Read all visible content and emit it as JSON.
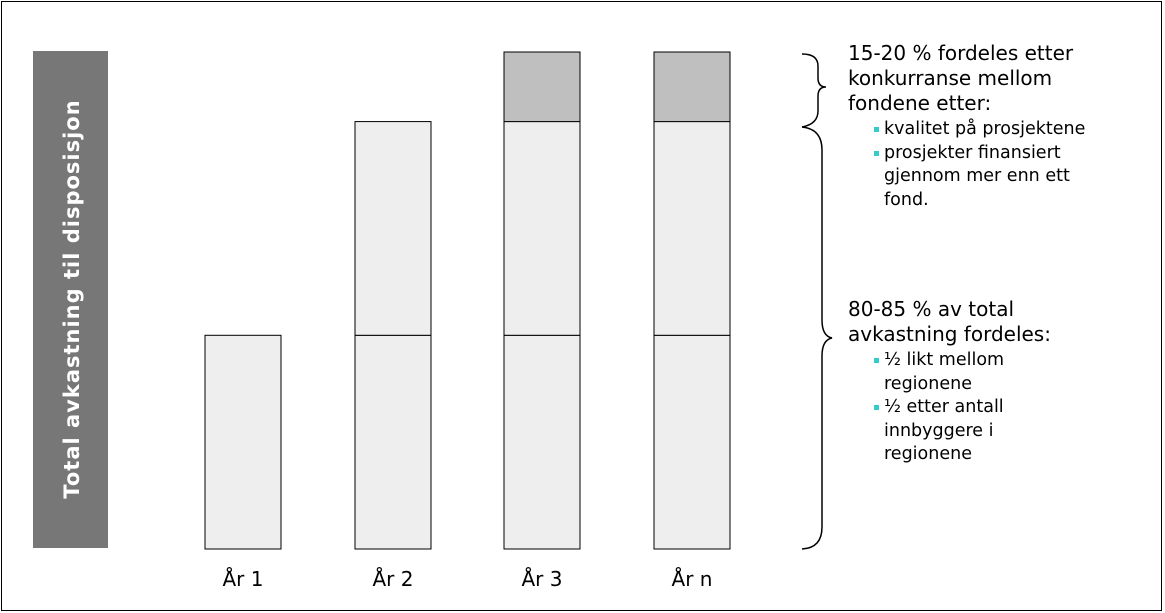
{
  "vertical_label": "Total avkastning til disposisjon",
  "chart_data": {
    "type": "bar",
    "stacked": true,
    "categories": [
      "År 1",
      "År 2",
      "År 3",
      "År n"
    ],
    "series": [
      {
        "values": [
          0.43,
          0.43,
          0.43,
          0.43
        ]
      },
      {
        "values": [
          0,
          0.43,
          0.43,
          0.43
        ]
      },
      {
        "values": [
          0,
          0,
          0.14,
          0.14
        ]
      }
    ],
    "ylim": [
      0,
      1
    ],
    "grid": false
  },
  "annotations": {
    "top": {
      "heading": [
        "15-20 % fordeles etter",
        "konkurranse mellom",
        "fondene etter:"
      ],
      "bullets": [
        [
          "kvalitet på prosjektene"
        ],
        [
          "prosjekter finansiert",
          "gjennom mer enn ett",
          "fond."
        ]
      ]
    },
    "bottom": {
      "heading": [
        "80-85 % av total",
        "avkastning fordeles:"
      ],
      "bullets": [
        [
          "½ likt mellom",
          "regionene"
        ],
        [
          "½ etter antall",
          "innbyggere i",
          "regionene"
        ]
      ]
    }
  },
  "colors": {
    "vertical_bar": "#777777",
    "bar_light": "#EEEEEE",
    "bar_top": "#BFBFBF",
    "bullet": "#33CCCC"
  }
}
